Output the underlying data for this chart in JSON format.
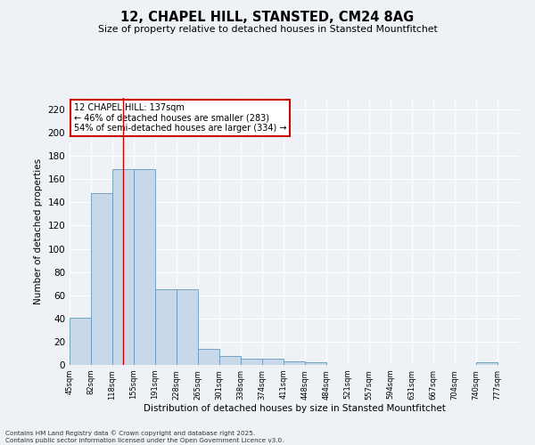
{
  "title": "12, CHAPEL HILL, STANSTED, CM24 8AG",
  "subtitle": "Size of property relative to detached houses in Stansted Mountfitchet",
  "xlabel": "Distribution of detached houses by size in Stansted Mountfitchet",
  "ylabel": "Number of detached properties",
  "annotation_title": "12 CHAPEL HILL: 137sqm",
  "annotation_line1": "← 46% of detached houses are smaller (283)",
  "annotation_line2": "54% of semi-detached houses are larger (334) →",
  "footer_line1": "Contains HM Land Registry data © Crown copyright and database right 2025.",
  "footer_line2": "Contains public sector information licensed under the Open Government Licence v3.0.",
  "bar_edges": [
    45,
    82,
    118,
    155,
    191,
    228,
    265,
    301,
    338,
    374,
    411,
    448,
    484,
    521,
    557,
    594,
    631,
    667,
    704,
    740,
    777
  ],
  "bar_heights": [
    41,
    148,
    169,
    169,
    65,
    65,
    14,
    8,
    5,
    5,
    3,
    2,
    0,
    0,
    0,
    0,
    0,
    0,
    0,
    2,
    0
  ],
  "bar_color": "#c8d8e8",
  "bar_edge_color": "#6699bb",
  "red_line_x": 137,
  "ylim": [
    0,
    230
  ],
  "yticks": [
    0,
    20,
    40,
    60,
    80,
    100,
    120,
    140,
    160,
    180,
    200,
    220
  ],
  "background_color": "#eef2f7",
  "grid_color": "#ffffff",
  "annotation_box_color": "#ffffff",
  "annotation_box_edge": "#cc0000",
  "red_line_color": "#cc0000"
}
